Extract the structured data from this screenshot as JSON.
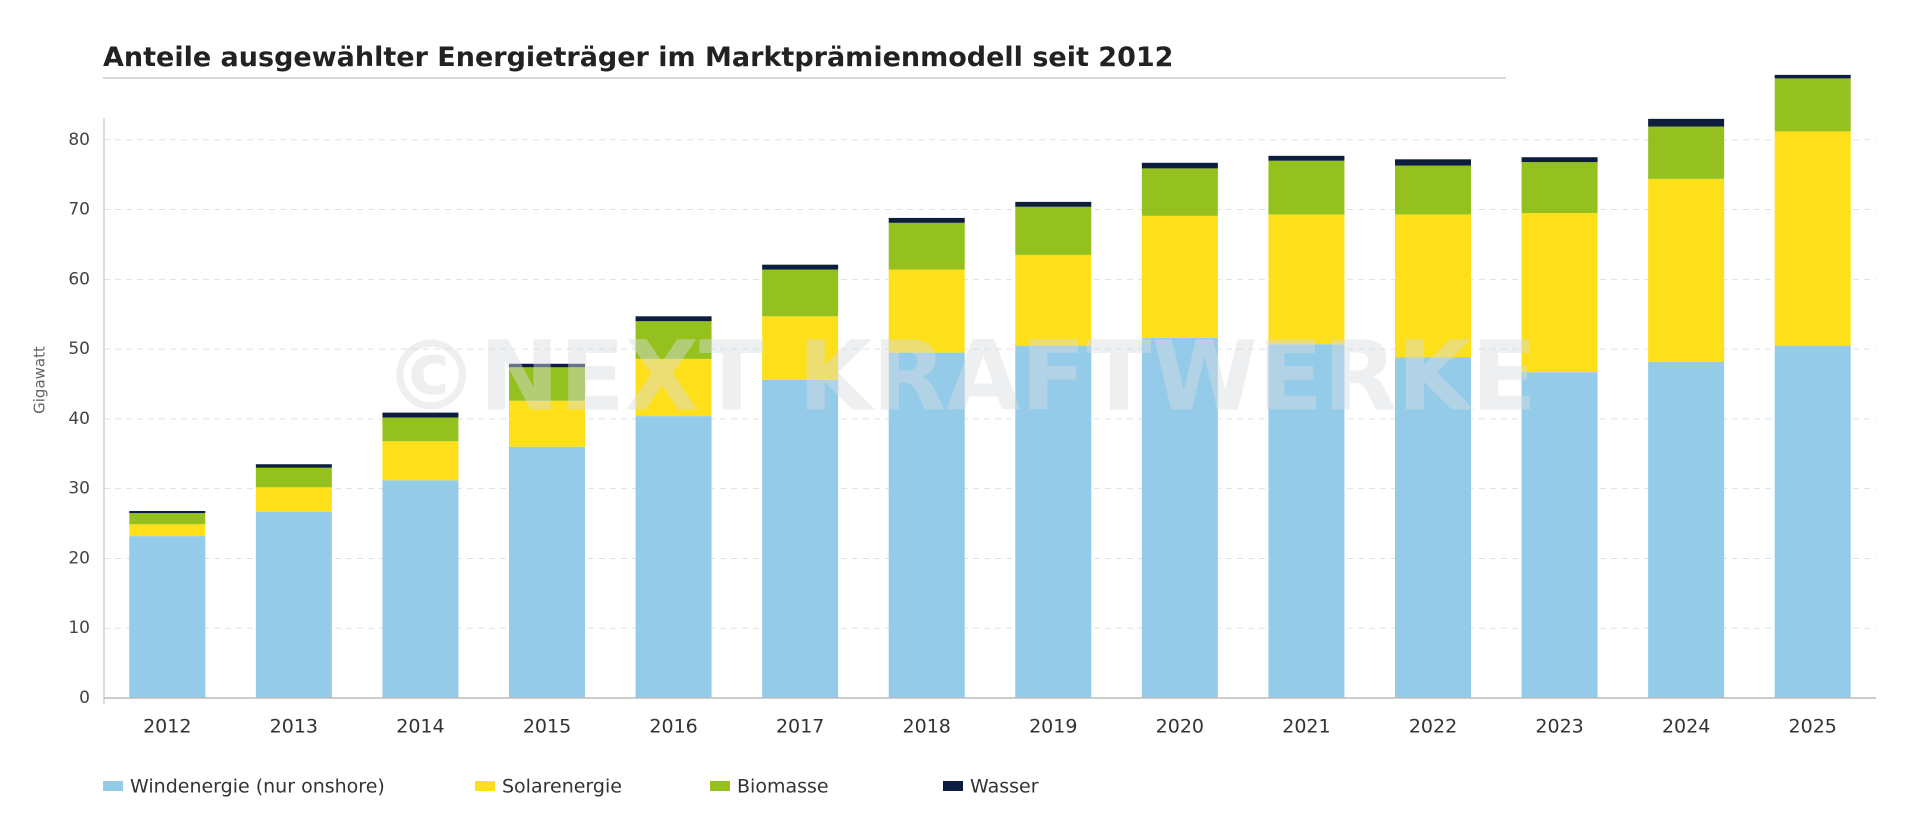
{
  "chart_data": {
    "type": "stacked_bar",
    "title": "Anteile ausgewählter Energieträger im Marktprämienmodell seit 2012",
    "y_label": "Gigawatt",
    "watermark": "©NEXT KRAFTWERKE",
    "categories": [
      "2012",
      "2013",
      "2014",
      "2015",
      "2016",
      "2017",
      "2018",
      "2019",
      "2020",
      "2021",
      "2022",
      "2023",
      "2024",
      "2025"
    ],
    "series": [
      {
        "name": "Windenergie (nur onshore)",
        "color": "#93cbe8",
        "values": [
          23.2,
          26.7,
          31.2,
          36.0,
          40.4,
          45.6,
          49.5,
          50.5,
          51.6,
          50.7,
          48.8,
          46.7,
          48.2,
          50.5
        ]
      },
      {
        "name": "Solarenergie",
        "color": "#fde01a",
        "values": [
          1.7,
          3.5,
          5.6,
          6.6,
          8.2,
          9.1,
          11.9,
          13.0,
          17.5,
          18.6,
          20.5,
          22.8,
          26.2,
          30.7
        ]
      },
      {
        "name": "Biomasse",
        "color": "#95c11f",
        "values": [
          1.6,
          2.8,
          3.4,
          4.8,
          5.4,
          6.7,
          6.7,
          6.9,
          6.8,
          7.7,
          7.0,
          7.3,
          7.5,
          7.6
        ]
      },
      {
        "name": "Wasser",
        "color": "#0d1d40",
        "values": [
          0.3,
          0.5,
          0.7,
          0.5,
          0.7,
          0.7,
          0.7,
          0.7,
          0.8,
          0.7,
          0.9,
          0.7,
          1.1,
          0.5
        ]
      }
    ],
    "ylim": [
      0,
      90
    ],
    "yticks": [
      0,
      10,
      20,
      30,
      40,
      50,
      60,
      70,
      80
    ],
    "grid": true
  }
}
